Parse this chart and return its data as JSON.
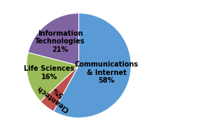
{
  "slices": [
    {
      "label": "Communications\n& Internet",
      "value": 58,
      "color": "#5b9bd5",
      "r": 0.55,
      "ha": "center"
    },
    {
      "label": "Cleantech",
      "value": 5,
      "color": "#c0504d",
      "r": 0.72,
      "ha": "center",
      "rotate": true
    },
    {
      "label": "Life Sciences",
      "value": 16,
      "color": "#9bbb59",
      "r": 0.58,
      "ha": "center"
    },
    {
      "label": "Information\nTechnologies",
      "value": 21,
      "color": "#8064a2",
      "r": 0.58,
      "ha": "center"
    }
  ],
  "label_fontsize": 7.0,
  "label_fontweight": "bold",
  "background_color": "#ffffff",
  "startangle": 90,
  "figure_width": 3.0,
  "figure_height": 1.87
}
